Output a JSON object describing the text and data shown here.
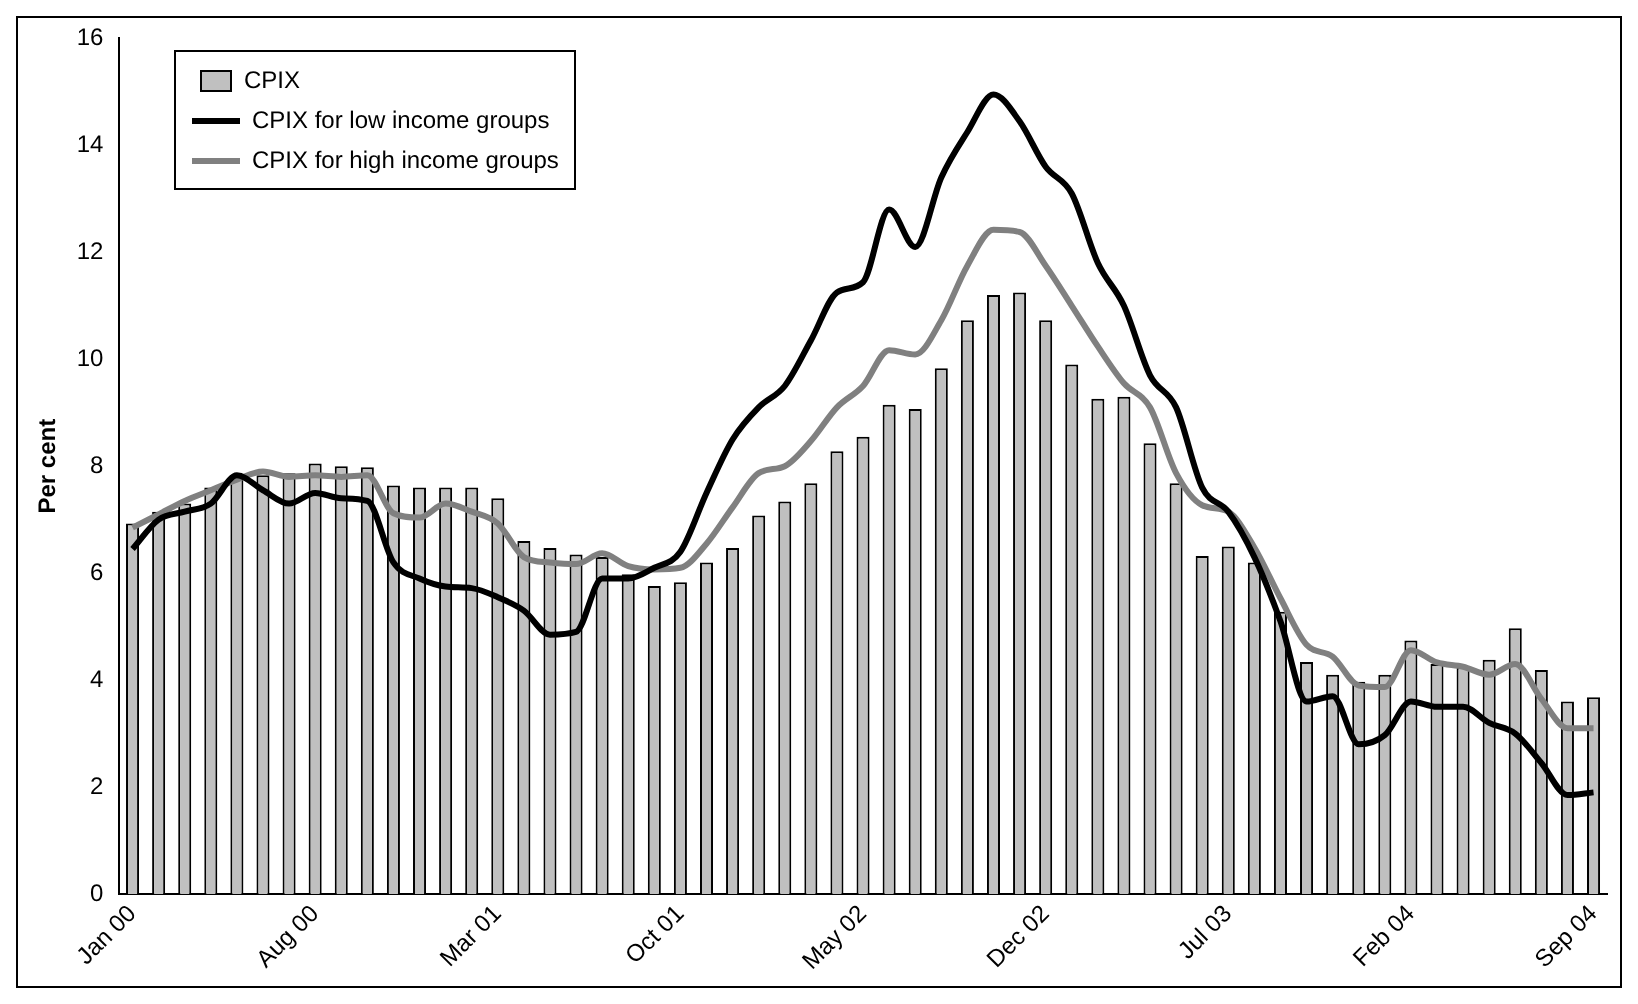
{
  "chart_data": {
    "type": "bar",
    "ylabel": "Per cent",
    "categories": [
      "Jan 00",
      null,
      null,
      null,
      null,
      null,
      null,
      "Aug 00",
      null,
      null,
      null,
      null,
      null,
      null,
      "Mar 01",
      null,
      null,
      null,
      null,
      null,
      null,
      "Oct 01",
      null,
      null,
      null,
      null,
      null,
      null,
      "May 02",
      null,
      null,
      null,
      null,
      null,
      null,
      "Dec 02",
      null,
      null,
      null,
      null,
      null,
      null,
      "Jul 03",
      null,
      null,
      null,
      null,
      null,
      null,
      "Feb 04",
      null,
      null,
      null,
      null,
      null,
      null,
      "Sep 04"
    ],
    "series": [
      {
        "name": "CPIX",
        "color": "#c0c0c0",
        "values": [
          6.93,
          7.15,
          7.3,
          7.6,
          7.8,
          7.83,
          7.87,
          8.05,
          8.0,
          7.98,
          7.64,
          7.6,
          7.6,
          7.6,
          7.4,
          6.6,
          6.47,
          6.35,
          6.3,
          5.98,
          5.76,
          5.83,
          6.2,
          6.47,
          7.08,
          7.34,
          7.68,
          8.28,
          8.55,
          9.15,
          9.07,
          9.83,
          10.73,
          11.2,
          11.25,
          10.73,
          9.9,
          9.26,
          9.3,
          8.43,
          7.68,
          6.32,
          6.5,
          6.2,
          5.28,
          4.34,
          4.1,
          3.97,
          4.1,
          4.74,
          4.3,
          4.24,
          4.38,
          4.97,
          4.19,
          3.6,
          3.68
        ]
      },
      {
        "name": "CPIX for low income groups",
        "type": "line",
        "color": "#000000",
        "values": [
          6.45,
          7.0,
          7.15,
          7.3,
          7.83,
          7.55,
          7.3,
          7.5,
          7.4,
          7.35,
          6.2,
          5.9,
          5.75,
          5.72,
          5.55,
          5.3,
          4.85,
          4.9,
          5.9,
          5.9,
          6.1,
          6.4,
          7.5,
          8.5,
          9.1,
          9.5,
          10.35,
          11.25,
          11.44,
          12.8,
          12.1,
          13.4,
          14.25,
          14.95,
          14.45,
          13.6,
          13.1,
          11.8,
          11.0,
          9.7,
          9.1,
          7.6,
          7.15,
          6.3,
          5.1,
          3.6,
          3.7,
          2.8,
          2.97,
          3.6,
          3.5,
          3.5,
          3.2,
          3.0,
          2.45,
          1.85,
          1.9
        ]
      },
      {
        "name": "CPIX for high income groups",
        "type": "line",
        "color": "#808080",
        "values": [
          6.85,
          7.1,
          7.35,
          7.55,
          7.75,
          7.9,
          7.8,
          7.83,
          7.8,
          7.83,
          7.12,
          7.04,
          7.3,
          7.15,
          6.93,
          6.3,
          6.2,
          6.17,
          6.37,
          6.13,
          6.07,
          6.1,
          6.55,
          7.23,
          7.87,
          8.0,
          8.47,
          9.1,
          9.5,
          10.17,
          10.09,
          10.73,
          11.75,
          12.42,
          12.38,
          11.75,
          11.0,
          10.24,
          9.55,
          9.1,
          7.87,
          7.27,
          7.15,
          6.48,
          5.53,
          4.66,
          4.44,
          3.9,
          3.87,
          4.56,
          4.33,
          4.25,
          4.1,
          4.3,
          3.65,
          3.1,
          3.1
        ]
      }
    ],
    "ylim": [
      0,
      16
    ],
    "yticks": [
      0,
      2,
      4,
      6,
      8,
      10,
      12,
      14,
      16
    ],
    "grid": false,
    "legend": "top left"
  }
}
